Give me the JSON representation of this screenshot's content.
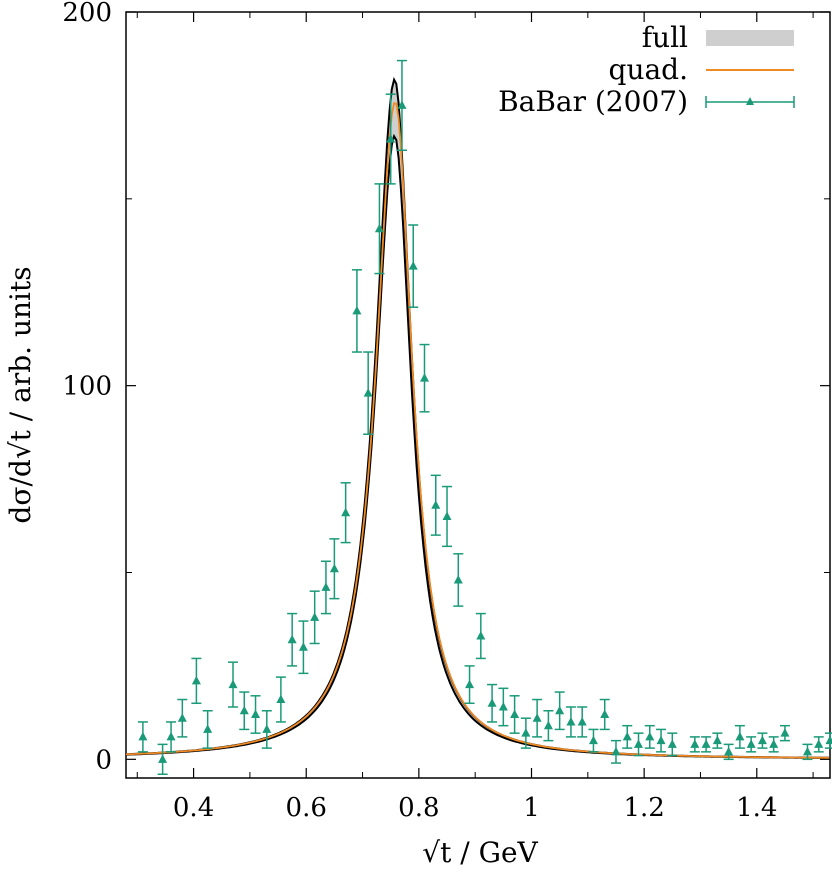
{
  "chart_data": {
    "type": "line",
    "xlabel": "√t / GeV",
    "ylabel": "dσ/d√t / arb. units",
    "xlim": [
      0.28,
      1.53
    ],
    "ylim": [
      -5,
      200
    ],
    "xticks": [
      0.4,
      0.6,
      0.8,
      1,
      1.2,
      1.4
    ],
    "xtick_labels": [
      "0.4",
      "0.6",
      "0.8",
      "1",
      "1.2",
      "1.4"
    ],
    "yticks": [
      0,
      100,
      200
    ],
    "ytick_labels": [
      "0",
      "100",
      "200"
    ],
    "grid": false,
    "legend_position": "top-right",
    "colors": {
      "band": "#cfcfcf",
      "band_edge": "#000000",
      "quad": "#f08a24",
      "data": "#1a9a78"
    },
    "series": [
      {
        "name": "full",
        "kind": "band",
        "peak": {
          "x0": 0.757,
          "gamma_left": 0.0825,
          "gamma_right": 0.0735
        },
        "band_peak": [
          172,
          182
        ]
      },
      {
        "name": "quad.",
        "kind": "line",
        "peak": {
          "x0": 0.758,
          "peak_value": 176,
          "gamma_left": 0.0835,
          "gamma_right": 0.0745
        }
      },
      {
        "name": "BaBar (2007)",
        "kind": "points",
        "x": [
          0.31,
          0.345,
          0.36,
          0.38,
          0.405,
          0.425,
          0.47,
          0.49,
          0.51,
          0.53,
          0.555,
          0.575,
          0.595,
          0.615,
          0.635,
          0.65,
          0.67,
          0.69,
          0.71,
          0.73,
          0.75,
          0.77,
          0.79,
          0.81,
          0.83,
          0.85,
          0.87,
          0.89,
          0.91,
          0.93,
          0.95,
          0.97,
          0.99,
          1.01,
          1.03,
          1.05,
          1.07,
          1.09,
          1.11,
          1.13,
          1.15,
          1.17,
          1.19,
          1.21,
          1.23,
          1.25,
          1.29,
          1.31,
          1.33,
          1.35,
          1.37,
          1.39,
          1.41,
          1.43,
          1.45,
          1.49,
          1.51,
          1.53
        ],
        "y": [
          6,
          0,
          6,
          11,
          21,
          8,
          20,
          13,
          12,
          8,
          16,
          32,
          30,
          38,
          46,
          51,
          66,
          120,
          98,
          142,
          166,
          175,
          132,
          102,
          68,
          65,
          48,
          20,
          33,
          15,
          14,
          12,
          7,
          11,
          9,
          13,
          10,
          10,
          5,
          12,
          2,
          6,
          4,
          6,
          5,
          4,
          4,
          4,
          5,
          2,
          6,
          4,
          5,
          4,
          7,
          2,
          4,
          5
        ],
        "err": [
          4,
          4,
          4,
          5,
          6,
          5,
          6,
          5,
          5,
          5,
          6,
          7,
          7,
          7,
          7,
          8,
          8,
          11,
          11,
          12,
          12,
          12,
          11,
          9,
          8,
          8,
          7,
          5,
          6,
          5,
          5,
          5,
          4,
          5,
          4,
          5,
          4,
          4,
          3,
          4,
          3,
          3,
          3,
          3,
          3,
          3,
          2,
          2,
          2,
          2,
          3,
          2,
          2,
          2,
          2,
          2,
          2,
          2
        ]
      }
    ]
  }
}
